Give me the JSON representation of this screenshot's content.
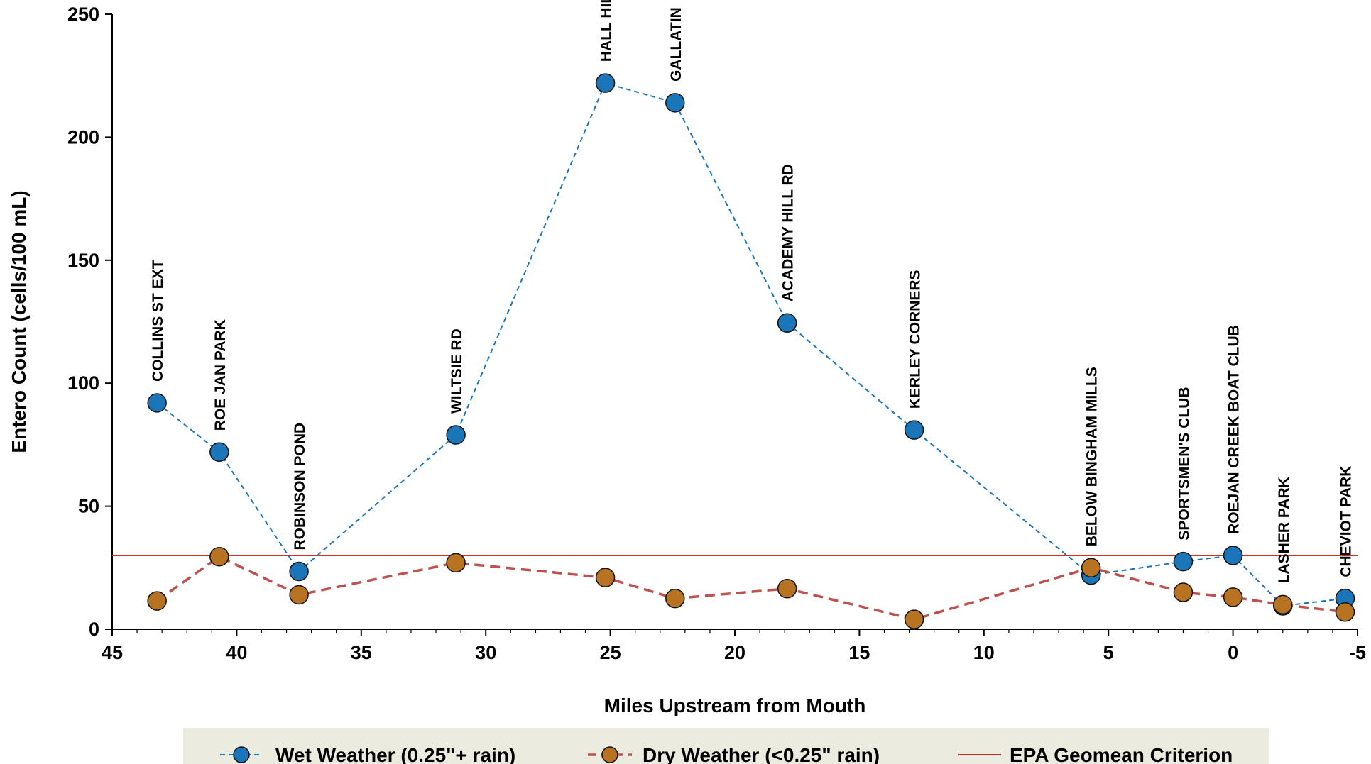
{
  "chart_data": {
    "type": "line",
    "title": "",
    "xlabel": "Miles Upstream from Mouth",
    "ylabel": "Entero Count (cells/100 mL)",
    "xlim": [
      45,
      -5
    ],
    "ylim": [
      0,
      250
    ],
    "x_ticks": [
      45,
      40,
      35,
      30,
      25,
      20,
      15,
      10,
      5,
      0,
      -5
    ],
    "y_ticks": [
      0,
      50,
      100,
      150,
      200,
      250
    ],
    "x_tick_labels": [
      "45",
      "40",
      "35",
      "30",
      "25",
      "20",
      "15",
      "10",
      "5",
      "0",
      "-5"
    ],
    "y_tick_labels": [
      "0",
      "50",
      "100",
      "150",
      "200",
      "250"
    ],
    "grid": false,
    "legend_position": "bottom",
    "sites": [
      {
        "name": "COLLINS ST EXT",
        "x": 43.2
      },
      {
        "name": "ROE JAN PARK",
        "x": 40.7
      },
      {
        "name": "ROBINSON POND",
        "x": 37.5
      },
      {
        "name": "WILTSIE RD",
        "x": 31.2
      },
      {
        "name": "HALL HILL RD",
        "x": 25.2
      },
      {
        "name": "GALLATIN",
        "x": 22.4
      },
      {
        "name": "ACADEMY HILL RD",
        "x": 17.9
      },
      {
        "name": "KERLEY CORNERS",
        "x": 12.8
      },
      {
        "name": "BELOW BINGHAM MILLS",
        "x": 5.7
      },
      {
        "name": "SPORTSMEN'S CLUB",
        "x": 2.0
      },
      {
        "name": "ROEJAN CREEK BOAT CLUB",
        "x": 0.0
      },
      {
        "name": "LASHER PARK",
        "x": -2.0
      },
      {
        "name": "CHEVIOT PARK",
        "x": -4.5
      }
    ],
    "series": [
      {
        "name": "Wet Weather (0.25\"+ rain)",
        "color": "#1a75b9",
        "line_style": "dashed",
        "x": [
          43.2,
          40.7,
          37.5,
          31.2,
          25.2,
          22.4,
          17.9,
          12.8,
          5.7,
          2.0,
          0.0,
          -2.0,
          -4.5
        ],
        "y": [
          92,
          72,
          23.5,
          79,
          222,
          214,
          124.5,
          81,
          22,
          27.5,
          30,
          9.5,
          12.5
        ]
      },
      {
        "name": "Dry Weather (<0.25\" rain)",
        "color": "#b87322",
        "line_color": "#c0504d",
        "line_style": "dashed",
        "x": [
          43.2,
          40.7,
          37.5,
          31.2,
          25.2,
          22.4,
          17.9,
          12.8,
          5.7,
          2.0,
          0.0,
          -2.0,
          -4.5
        ],
        "y": [
          11.5,
          29.5,
          14,
          27,
          21,
          12.5,
          16.5,
          4,
          25,
          15,
          13,
          10,
          7
        ]
      },
      {
        "name": "EPA Geomean Criterion",
        "color": "#d42a2a",
        "line_style": "solid",
        "constant_y": 30
      }
    ]
  }
}
